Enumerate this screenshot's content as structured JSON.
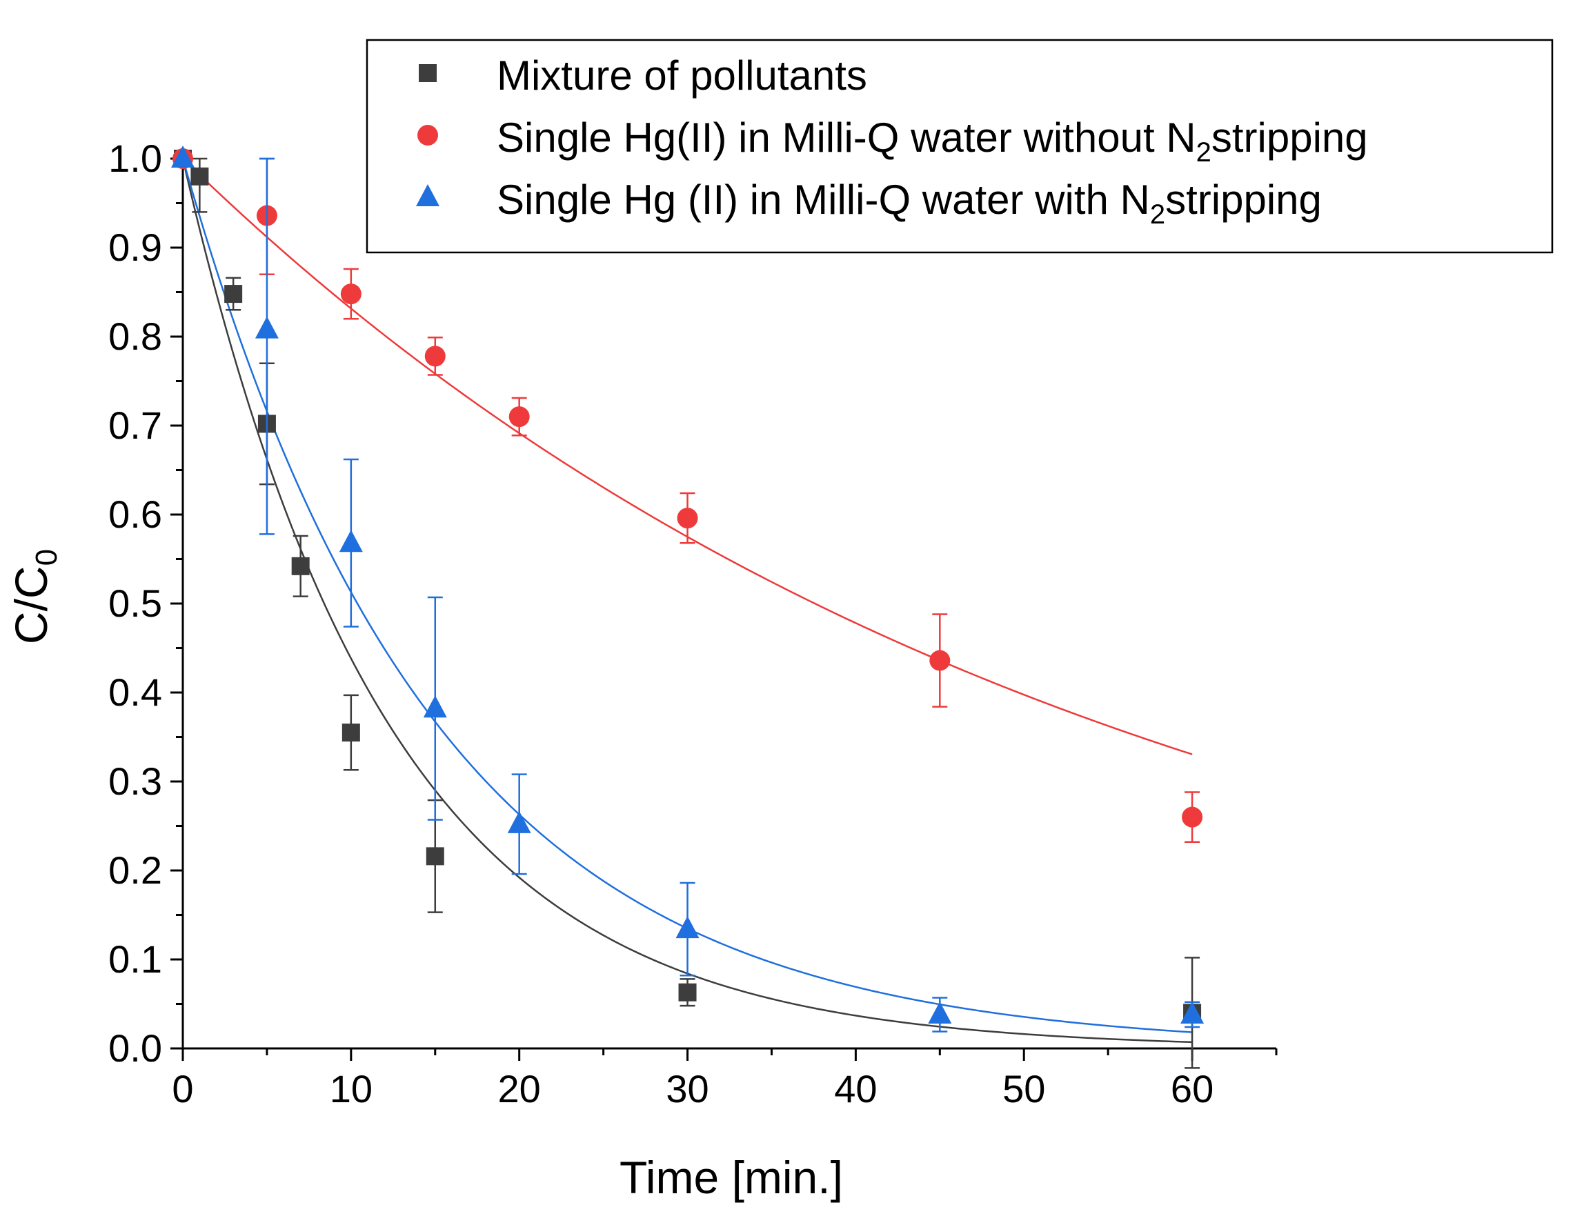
{
  "chart_data": {
    "type": "scatter",
    "title": "",
    "xlabel": "Time [min.]",
    "ylabel": "C/C",
    "ylabel_sub": "0",
    "xlim": [
      0,
      65
    ],
    "ylim": [
      0.0,
      1.0
    ],
    "x_ticks": [
      0,
      10,
      20,
      30,
      40,
      50,
      60
    ],
    "x_tick_labels": [
      "0",
      "10",
      "20",
      "30",
      "40",
      "50",
      "60"
    ],
    "x_minor_step": 5,
    "y_ticks": [
      0.0,
      0.1,
      0.2,
      0.3,
      0.4,
      0.5,
      0.6,
      0.7,
      0.8,
      0.9,
      1.0
    ],
    "y_tick_labels": [
      "0.0",
      "0.1",
      "0.2",
      "0.3",
      "0.4",
      "0.5",
      "0.6",
      "0.7",
      "0.8",
      "0.9",
      "1.0"
    ],
    "y_minor_step": 0.05,
    "grid": false,
    "legend_position": "top-right",
    "series": [
      {
        "name": "Mixture of pollutants",
        "legend_parts": [
          "Mixture of pollutants"
        ],
        "marker": "square",
        "color": "#3d3d3d",
        "x": [
          0,
          1,
          3,
          5,
          7,
          10,
          15,
          30,
          60
        ],
        "y": [
          1.0,
          0.98,
          0.848,
          0.702,
          0.542,
          0.355,
          0.216,
          0.063,
          0.04
        ],
        "err": [
          0.0,
          0.04,
          0.018,
          0.068,
          0.034,
          0.042,
          0.063,
          0.015,
          0.062
        ],
        "fit": {
          "model": "exponential",
          "y0": 1.0,
          "k": 0.0825,
          "x_range": [
            0,
            60
          ]
        }
      },
      {
        "name": "Single Hg(II) in Milli-Q water without N2stripping",
        "legend_parts": [
          "Single Hg(II) in Milli-Q water without N",
          "2",
          "stripping"
        ],
        "marker": "circle",
        "color": "#ee3a3a",
        "x": [
          0,
          5,
          10,
          15,
          20,
          30,
          45,
          60
        ],
        "y": [
          1.0,
          0.936,
          0.848,
          0.778,
          0.71,
          0.596,
          0.436,
          0.26
        ],
        "err": [
          0.0,
          0.066,
          0.028,
          0.021,
          0.021,
          0.028,
          0.052,
          0.028
        ],
        "fit": {
          "model": "exponential",
          "y0": 1.0,
          "k": 0.01845,
          "x_range": [
            0,
            60
          ]
        }
      },
      {
        "name": "Single Hg (II) in Milli-Q water with N2stripping",
        "legend_parts": [
          "Single Hg (II) in Milli-Q water with N",
          "2",
          "stripping"
        ],
        "marker": "triangle",
        "color": "#1f6fde",
        "x": [
          0,
          5,
          10,
          15,
          20,
          30,
          45,
          60
        ],
        "y": [
          1.0,
          0.808,
          0.568,
          0.382,
          0.252,
          0.134,
          0.038,
          0.038
        ],
        "err": [
          0.0,
          0.23,
          0.094,
          0.125,
          0.056,
          0.052,
          0.019,
          0.014
        ],
        "fit": {
          "model": "exponential",
          "y0": 1.0,
          "k": 0.0668,
          "x_range": [
            0,
            60
          ]
        }
      }
    ]
  }
}
